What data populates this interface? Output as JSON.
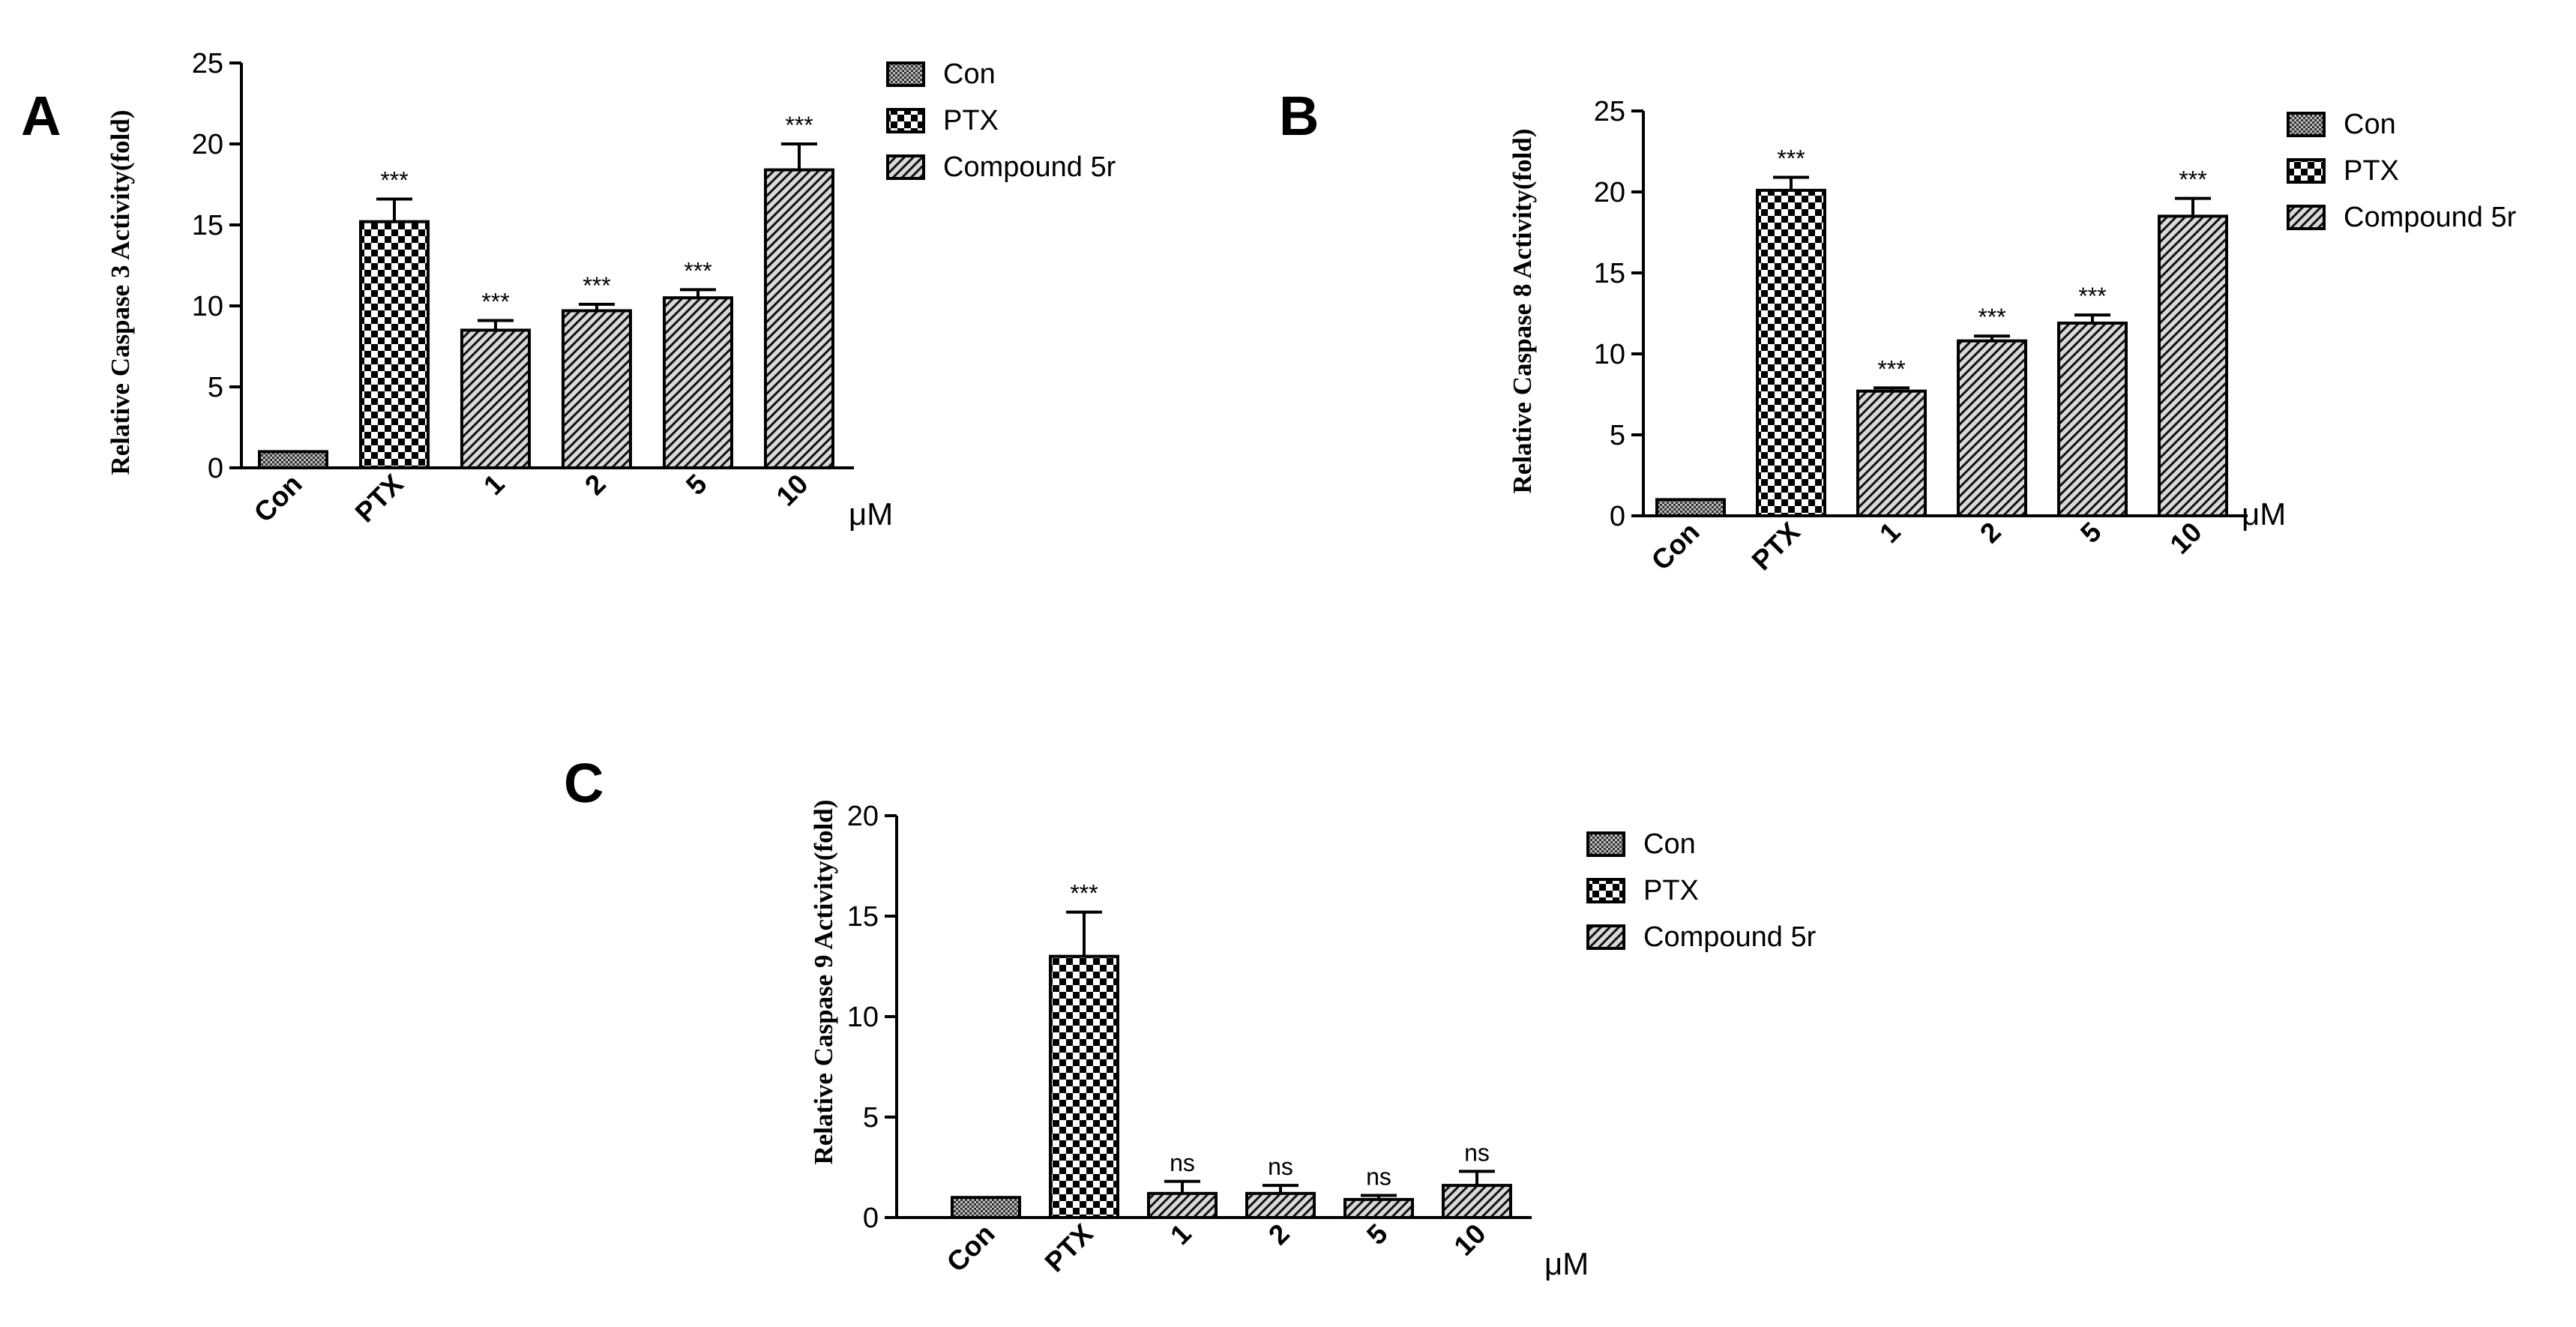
{
  "colors": {
    "ink": "#000000",
    "background": "#ffffff"
  },
  "patterns": {
    "con": "dense-dot",
    "ptx": "checker",
    "compound": "diagonal-hatch"
  },
  "chart_data": [
    {
      "panel": "A",
      "type": "bar",
      "title": "",
      "ylabel": "Relative Caspase 3 Activity(fold)",
      "xlabel": "",
      "unit": "μM",
      "categories": [
        "Con",
        "PTX",
        "1",
        "2",
        "5",
        "10"
      ],
      "values": [
        1.0,
        15.2,
        8.5,
        9.7,
        10.5,
        18.4
      ],
      "errors": [
        0.1,
        1.4,
        0.6,
        0.4,
        0.5,
        1.6
      ],
      "groups": [
        "Con",
        "PTX",
        "Compound 5r",
        "Compound 5r",
        "Compound 5r",
        "Compound 5r"
      ],
      "significance": [
        "",
        "***",
        "***",
        "***",
        "***",
        "***"
      ],
      "yticks": [
        "0",
        "5",
        "10",
        "15",
        "20",
        "25"
      ],
      "ylim": [
        0,
        25
      ],
      "legend": [
        "Con",
        "PTX",
        "Compound 5r"
      ]
    },
    {
      "panel": "B",
      "type": "bar",
      "title": "",
      "ylabel": "Relative Caspase 8 Activity(fold)",
      "xlabel": "",
      "unit": "μM",
      "categories": [
        "Con",
        "PTX",
        "1",
        "2",
        "5",
        "10"
      ],
      "values": [
        1.0,
        20.1,
        7.7,
        10.8,
        11.9,
        18.5
      ],
      "errors": [
        0.1,
        0.8,
        0.2,
        0.3,
        0.5,
        1.1
      ],
      "groups": [
        "Con",
        "PTX",
        "Compound 5r",
        "Compound 5r",
        "Compound 5r",
        "Compound 5r"
      ],
      "significance": [
        "",
        "***",
        "***",
        "***",
        "***",
        "***"
      ],
      "yticks": [
        "0",
        "5",
        "10",
        "15",
        "20",
        "25"
      ],
      "ylim": [
        0,
        25
      ],
      "legend": [
        "Con",
        "PTX",
        "Compound 5r"
      ]
    },
    {
      "panel": "C",
      "type": "bar",
      "title": "",
      "ylabel": "Relative Caspase 9 Activity(fold)",
      "xlabel": "",
      "unit": "μM",
      "categories": [
        "Con",
        "PTX",
        "1",
        "2",
        "5",
        "10"
      ],
      "values": [
        1.0,
        13.0,
        1.2,
        1.2,
        0.9,
        1.6
      ],
      "errors": [
        0.05,
        2.2,
        0.6,
        0.4,
        0.2,
        0.7
      ],
      "groups": [
        "Con",
        "PTX",
        "Compound 5r",
        "Compound 5r",
        "Compound 5r",
        "Compound 5r"
      ],
      "significance": [
        "",
        "***",
        "ns",
        "ns",
        "ns",
        "ns"
      ],
      "yticks": [
        "0",
        "5",
        "10",
        "15",
        "20"
      ],
      "ylim": [
        0,
        20
      ],
      "legend": [
        "Con",
        "PTX",
        "Compound 5r"
      ]
    }
  ]
}
